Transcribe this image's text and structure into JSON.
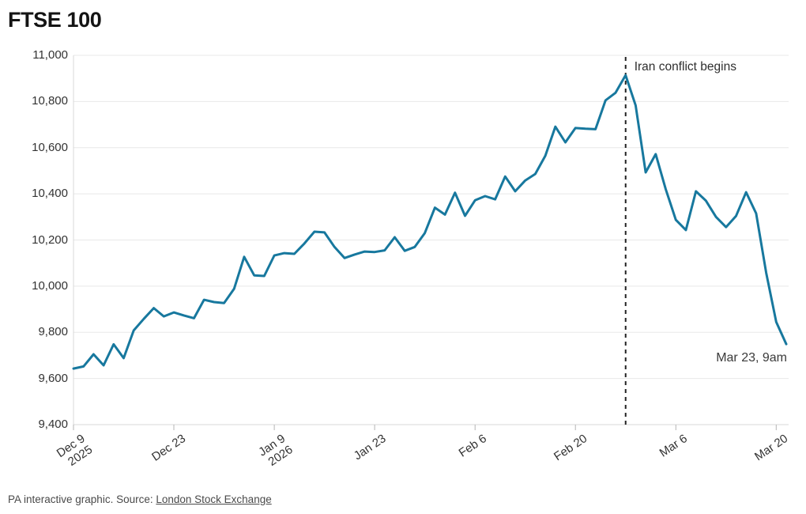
{
  "title": "FTSE 100",
  "chart_data": {
    "type": "line",
    "title": "FTSE 100",
    "series_name": "FTSE 100 index level",
    "x_tick_labels": [
      [
        "Dec 9",
        "2025"
      ],
      [
        "Dec 23"
      ],
      [
        "Jan 9",
        "2026"
      ],
      [
        "Jan 23"
      ],
      [
        "Feb 6"
      ],
      [
        "Feb 20"
      ],
      [
        "Mar 6"
      ],
      [
        "Mar 20"
      ]
    ],
    "x_tick_indices": [
      0,
      10,
      20,
      30,
      40,
      50,
      60,
      70
    ],
    "values": [
      9643,
      9652,
      9705,
      9657,
      9748,
      9688,
      9808,
      9858,
      9905,
      9869,
      9886,
      9873,
      9861,
      9941,
      9931,
      9927,
      9989,
      10127,
      10047,
      10044,
      10133,
      10143,
      10140,
      10185,
      10236,
      10233,
      10170,
      10122,
      10137,
      10150,
      10148,
      10155,
      10212,
      10153,
      10170,
      10230,
      10340,
      10310,
      10405,
      10305,
      10372,
      10390,
      10376,
      10475,
      10411,
      10458,
      10486,
      10565,
      10691,
      10623,
      10685,
      10682,
      10680,
      10805,
      10838,
      10914,
      10783,
      10493,
      10572,
      10420,
      10287,
      10243,
      10411,
      10370,
      10300,
      10256,
      10304,
      10407,
      10315,
      10058,
      9845,
      9749
    ],
    "y_ticks": [
      9400,
      9600,
      9800,
      10000,
      10200,
      10400,
      10600,
      10800,
      11000
    ],
    "y_tick_labels": [
      "9,400",
      "9,600",
      "9,800",
      "10,000",
      "10,200",
      "10,400",
      "10,600",
      "10,800",
      "11,000"
    ],
    "ylim": [
      9400,
      11000
    ],
    "xlabel": "",
    "ylabel": "",
    "grid": "horizontal",
    "legend": "none",
    "line_color": "#17789e",
    "annotations": {
      "event_index": 55,
      "event_label": "Iran conflict begins",
      "end_label": "Mar 23, 9am"
    }
  },
  "footer": {
    "credit": "PA interactive graphic. Source: ",
    "source_link": "London Stock Exchange"
  }
}
